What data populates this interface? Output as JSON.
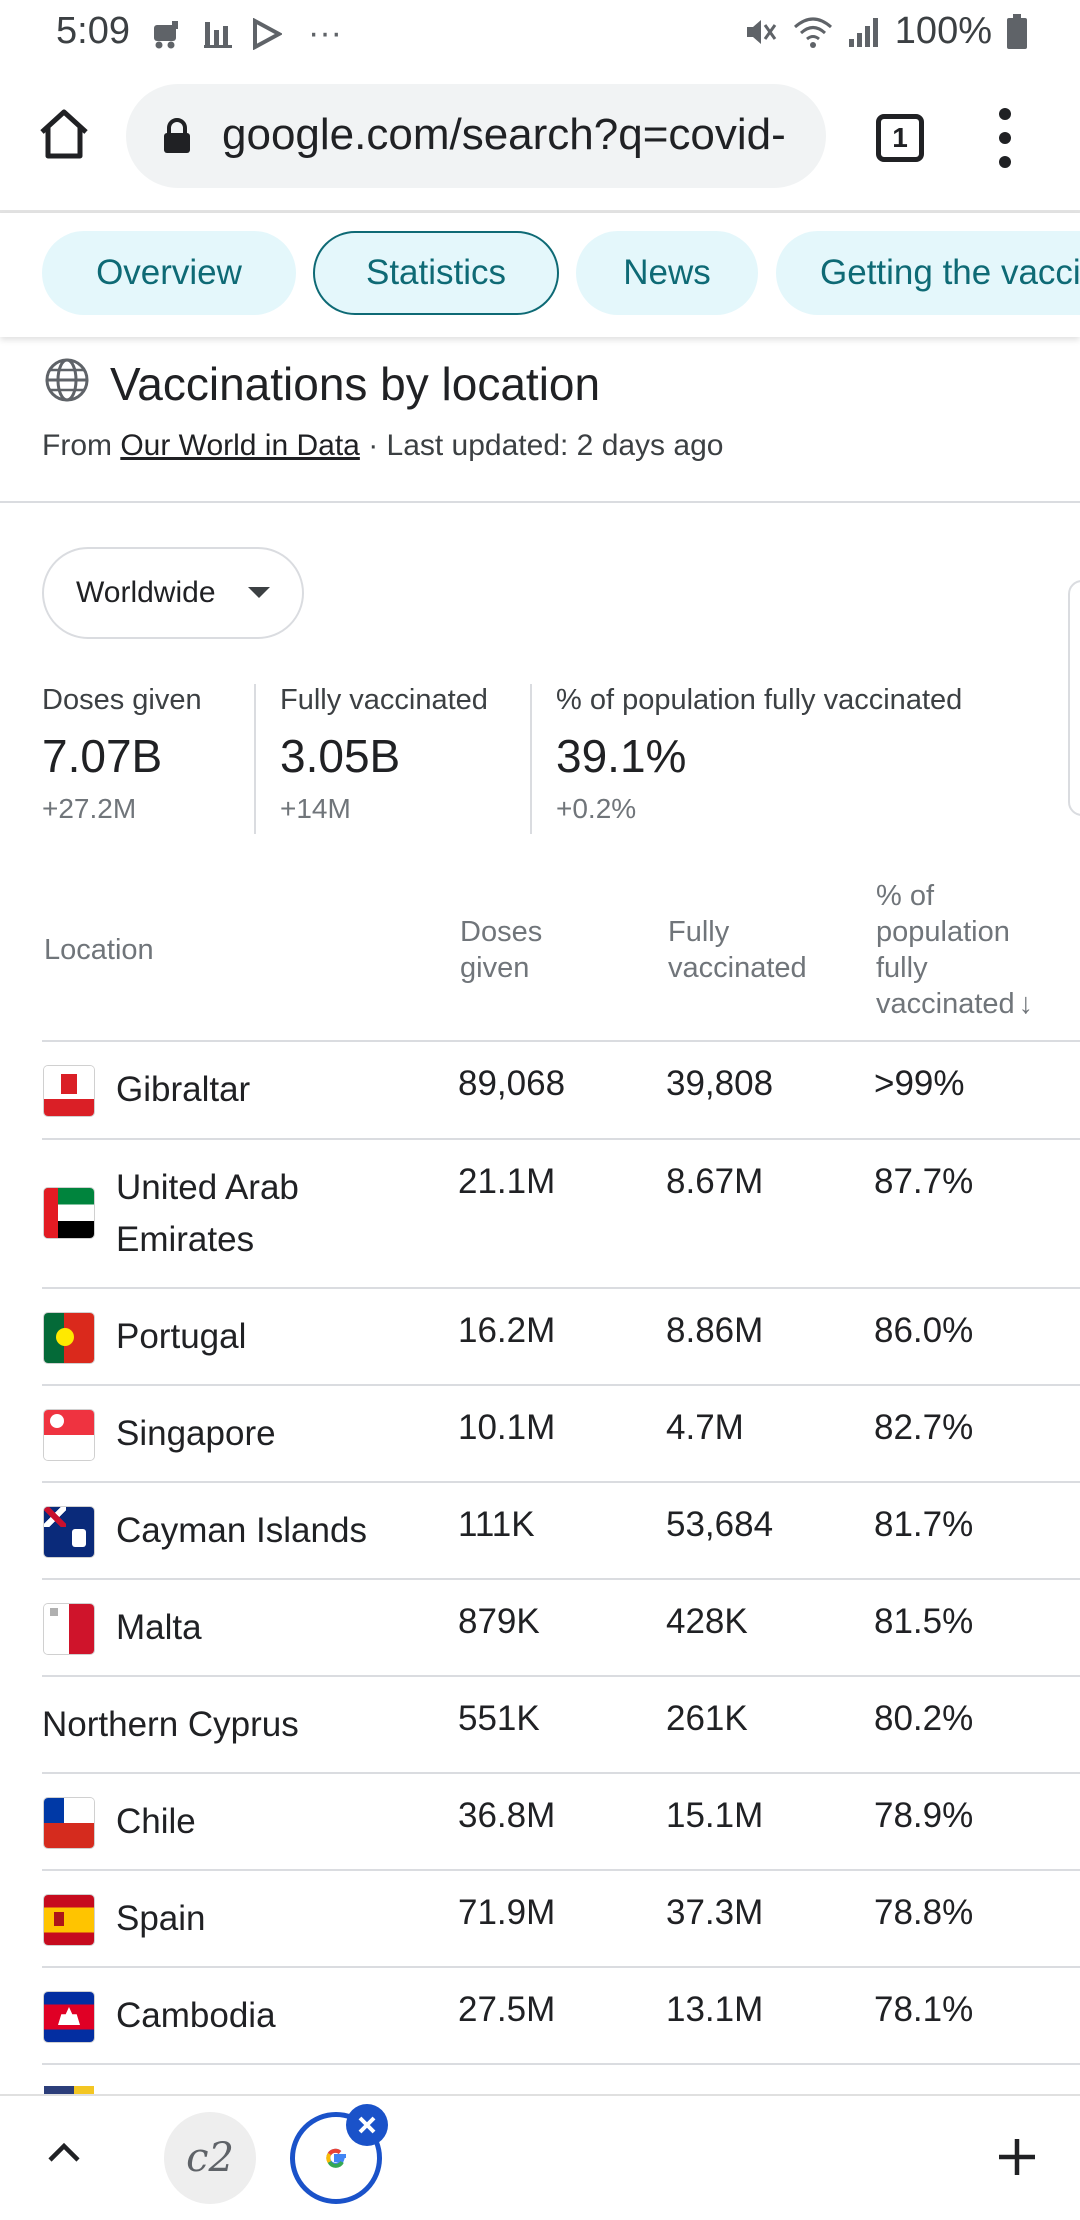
{
  "status_bar": {
    "time": "5:09",
    "more": "···",
    "battery": "100%"
  },
  "browser": {
    "url": "google.com/search?q=covid-",
    "tab_count": "1"
  },
  "chips": [
    "Overview",
    "Statistics",
    "News",
    "Getting the vaccine"
  ],
  "card": {
    "title": "Vaccinations by location",
    "source_prefix": "From ",
    "source_link": "Our World in Data",
    "source_suffix": " · Last updated: 2 days ago",
    "region_selected": "Worldwide"
  },
  "summary": [
    {
      "label": "Doses given",
      "value": "7.07B",
      "change": "+27.2M"
    },
    {
      "label": "Fully vaccinated",
      "value": "3.05B",
      "change": "+14M"
    },
    {
      "label": "% of population fully vaccinated",
      "value": "39.1%",
      "change": "+0.2%"
    }
  ],
  "table": {
    "headers": {
      "location": "Location",
      "doses_l1": "Doses",
      "doses_l2": "given",
      "fully_l1": "Fully",
      "fully_l2": "vaccinated",
      "pct_l1": "% of",
      "pct_l2": "population",
      "pct_l3": "fully",
      "pct_l4": "vaccinated",
      "sort_arrow": "↓"
    },
    "rows": [
      {
        "location": "Gibraltar",
        "doses": "89,068",
        "fully": "39,808",
        "pct": ">99%"
      },
      {
        "location": "United Arab Emirates",
        "doses": "21.1M",
        "fully": "8.67M",
        "pct": "87.7%"
      },
      {
        "location": "Portugal",
        "doses": "16.2M",
        "fully": "8.86M",
        "pct": "86.0%"
      },
      {
        "location": "Singapore",
        "doses": "10.1M",
        "fully": "4.7M",
        "pct": "82.7%"
      },
      {
        "location": "Cayman Islands",
        "doses": "111K",
        "fully": "53,684",
        "pct": "81.7%"
      },
      {
        "location": "Malta",
        "doses": "879K",
        "fully": "428K",
        "pct": "81.5%"
      },
      {
        "location": "Northern Cyprus",
        "doses": "551K",
        "fully": "261K",
        "pct": "80.2%"
      },
      {
        "location": "Chile",
        "doses": "36.8M",
        "fully": "15.1M",
        "pct": "78.9%"
      },
      {
        "location": "Spain",
        "doses": "71.9M",
        "fully": "37.3M",
        "pct": "78.8%"
      },
      {
        "location": "Cambodia",
        "doses": "27.5M",
        "fully": "13.1M",
        "pct": "78.1%"
      }
    ]
  },
  "bottom_bar": {
    "tab1_icon": "c2-logo-icon",
    "tab2_icon": "google-g-icon"
  }
}
